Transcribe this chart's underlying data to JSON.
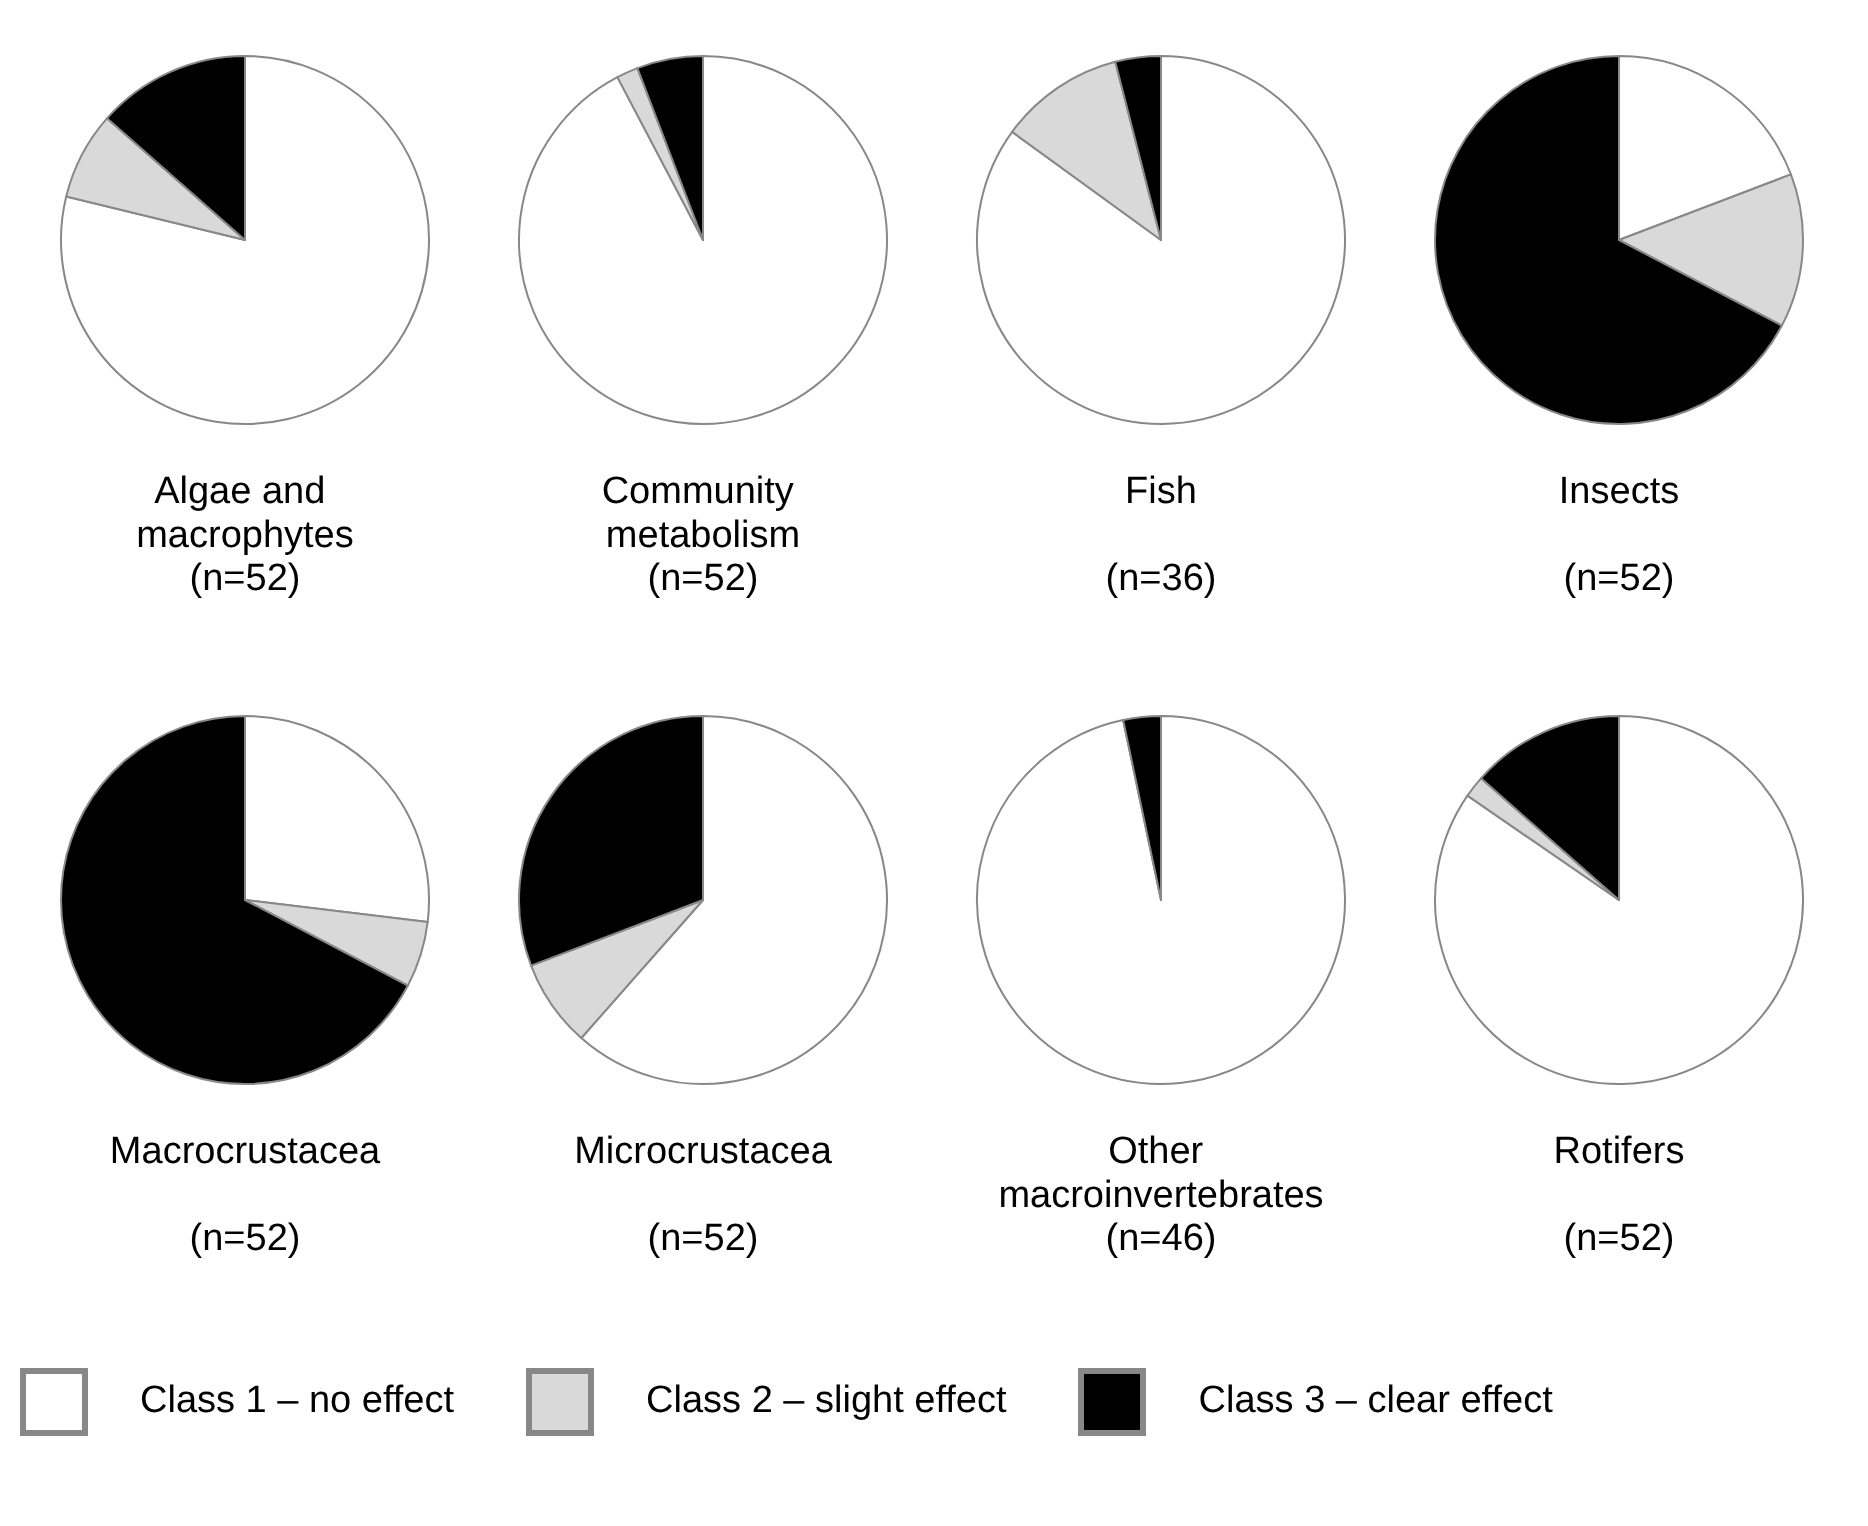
{
  "chart_data": [
    {
      "type": "pie",
      "title": "Algae and macrophytes",
      "subtitle": "(n=52)",
      "categories": [
        "Class 1 – no effect",
        "Class 2 – slight effect",
        "Class 3 – clear effect"
      ],
      "values": [
        78.8,
        7.7,
        13.5
      ],
      "colors": [
        "#ffffff",
        "#d9d9d9",
        "#000000"
      ],
      "legend": "bottom"
    },
    {
      "type": "pie",
      "title": "Community metabolism",
      "subtitle": "(n=52)",
      "categories": [
        null,
        null,
        null
      ],
      "values": [
        92.3,
        1.9,
        5.8
      ],
      "colors": [
        "#ffffff",
        "#d9d9d9",
        "#000000"
      ]
    },
    {
      "type": "pie",
      "title": "Fish",
      "subtitle": "(n=36)",
      "categories": [
        null,
        null,
        null
      ],
      "values": [
        85,
        11,
        4
      ],
      "colors": [
        "#ffffff",
        "#d9d9d9",
        "#000000"
      ]
    },
    {
      "type": "pie",
      "title": "Insects",
      "subtitle": "(n=52)",
      "categories": [
        null,
        null,
        null
      ],
      "values": [
        19.2,
        13.5,
        67.3
      ],
      "colors": [
        "#ffffff",
        "#d9d9d9",
        "#000000"
      ]
    },
    {
      "type": "pie",
      "title": "Macrocrustacea",
      "subtitle": "(n=52)",
      "categories": [
        null,
        null,
        null
      ],
      "values": [
        26.9,
        5.8,
        67.3
      ],
      "colors": [
        "#ffffff",
        "#d9d9d9",
        "#000000"
      ]
    },
    {
      "type": "pie",
      "title": "Microcrustacea",
      "subtitle": "(n=52)",
      "categories": [
        null,
        null,
        null
      ],
      "values": [
        61.5,
        7.7,
        30.8
      ],
      "colors": [
        "#ffffff",
        "#d9d9d9",
        "#000000"
      ]
    },
    {
      "type": "pie",
      "title": "Other macroinvertebrates",
      "subtitle": "(n=46)",
      "categories": [
        null,
        null,
        null
      ],
      "values": [
        96.7,
        0,
        3.3
      ],
      "colors": [
        "#ffffff",
        "#d9d9d9",
        "#000000"
      ]
    },
    {
      "type": "pie",
      "title": "Rotifers",
      "subtitle": "(n=52)",
      "categories": [
        null,
        null,
        null
      ],
      "values": [
        84.6,
        1.9,
        13.5
      ],
      "colors": [
        "#ffffff",
        "#d9d9d9",
        "#000000"
      ]
    }
  ]
}
